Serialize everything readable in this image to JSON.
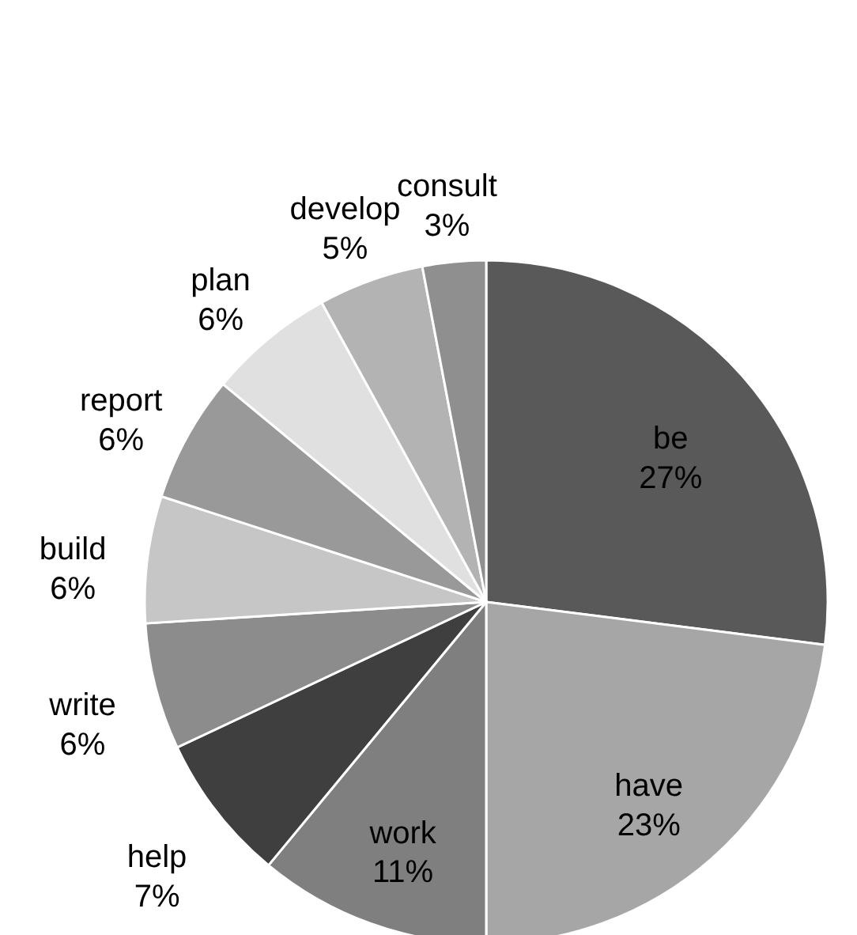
{
  "chart_data": {
    "type": "pie",
    "categories": [
      "be",
      "have",
      "work",
      "help",
      "write",
      "build",
      "report",
      "plan",
      "develop",
      "consult"
    ],
    "values": [
      27,
      23,
      11,
      7,
      6,
      6,
      6,
      6,
      5,
      3
    ],
    "colors": [
      "#595959",
      "#a6a6a6",
      "#7f7f7f",
      "#3f3f3f",
      "#8c8c8c",
      "#c6c6c6",
      "#999999",
      "#e0e0e0",
      "#b3b3b3",
      "#8f8f8f"
    ],
    "value_labels": [
      "27%",
      "23%",
      "11%",
      "7%",
      "6%",
      "6%",
      "6%",
      "6%",
      "5%",
      "3%"
    ]
  }
}
